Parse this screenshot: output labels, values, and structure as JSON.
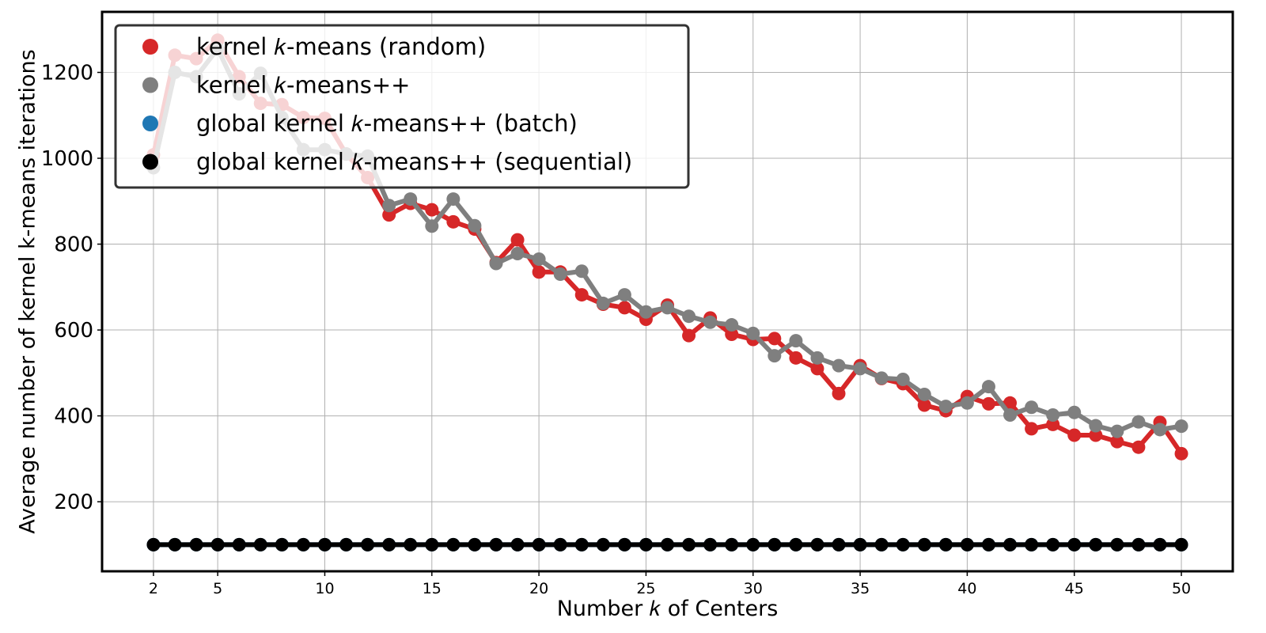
{
  "chart_data": {
    "type": "line",
    "xlabel": "Number 𝑘 of Centers",
    "ylabel": "Average number of kernel k-means iterations",
    "xlim": [
      -0.4,
      52.4
    ],
    "ylim": [
      38,
      1341
    ],
    "x_ticks": [
      2,
      5,
      10,
      15,
      20,
      25,
      30,
      35,
      40,
      45,
      50
    ],
    "y_ticks": [
      200,
      400,
      600,
      800,
      1000,
      1200
    ],
    "grid": true,
    "legend_position": "top-left",
    "x": [
      2,
      3,
      4,
      5,
      6,
      7,
      8,
      9,
      10,
      11,
      12,
      13,
      14,
      15,
      16,
      17,
      18,
      19,
      20,
      21,
      22,
      23,
      24,
      25,
      26,
      27,
      28,
      29,
      30,
      31,
      32,
      33,
      34,
      35,
      36,
      37,
      38,
      39,
      40,
      41,
      42,
      43,
      44,
      45,
      46,
      47,
      48,
      49,
      50
    ],
    "series": [
      {
        "name": "kernel 𝑘-means (random)",
        "color": "#d62728",
        "values": [
          1008,
          1240,
          1232,
          1275,
          1190,
          1128,
          1125,
          1095,
          1093,
          1010,
          955,
          868,
          895,
          880,
          852,
          835,
          757,
          810,
          735,
          735,
          682,
          660,
          652,
          625,
          658,
          587,
          628,
          590,
          578,
          580,
          535,
          510,
          452,
          517,
          487,
          475,
          425,
          412,
          445,
          428,
          430,
          370,
          380,
          355,
          355,
          340,
          327,
          385,
          312
        ]
      },
      {
        "name": "kernel 𝑘-means++",
        "color": "#7f7f7f",
        "values": [
          978,
          1200,
          1190,
          1255,
          1150,
          1198,
          1095,
          1020,
          1020,
          1010,
          1005,
          890,
          905,
          842,
          905,
          843,
          755,
          778,
          765,
          730,
          737,
          662,
          682,
          642,
          652,
          632,
          618,
          612,
          592,
          540,
          575,
          535,
          517,
          510,
          488,
          485,
          450,
          422,
          430,
          468,
          402,
          420,
          402,
          408,
          377,
          364,
          386,
          368,
          376
        ]
      },
      {
        "name": "global kernel 𝑘-means++ (batch)",
        "color": "#1f77b4",
        "values": [
          100,
          100,
          100,
          100,
          100,
          100,
          100,
          100,
          100,
          100,
          100,
          100,
          100,
          100,
          100,
          100,
          100,
          100,
          100,
          100,
          100,
          100,
          100,
          100,
          100,
          100,
          100,
          100,
          100,
          100,
          100,
          100,
          100,
          100,
          100,
          100,
          100,
          100,
          100,
          100,
          100,
          100,
          100,
          100,
          100,
          100,
          100,
          100,
          100
        ]
      },
      {
        "name": "global kernel 𝑘-means++ (sequential)",
        "color": "#000000",
        "values": [
          100,
          100,
          100,
          100,
          100,
          100,
          100,
          100,
          100,
          100,
          100,
          100,
          100,
          100,
          100,
          100,
          100,
          100,
          100,
          100,
          100,
          100,
          100,
          100,
          100,
          100,
          100,
          100,
          100,
          100,
          100,
          100,
          100,
          100,
          100,
          100,
          100,
          100,
          100,
          100,
          100,
          100,
          100,
          100,
          100,
          100,
          100,
          100,
          100
        ]
      }
    ]
  }
}
